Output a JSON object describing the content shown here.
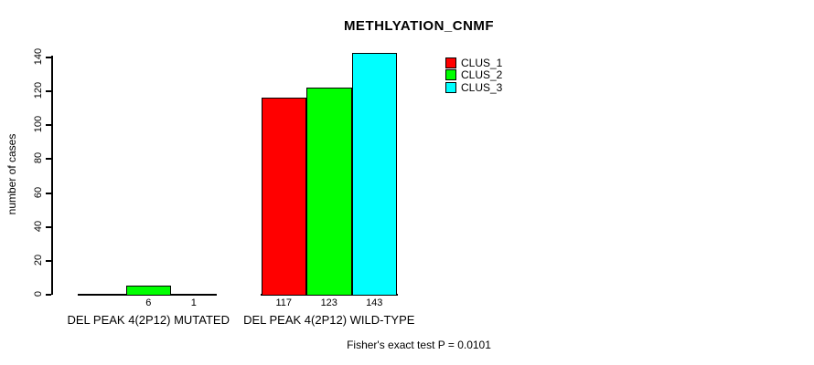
{
  "title": "METHLYATION_CNMF",
  "footer": "Fisher's exact test P = 0.0101",
  "chart_data": {
    "type": "bar",
    "title": "METHLYATION_CNMF",
    "xlabel": "",
    "ylabel": "number of cases",
    "ylim": [
      0,
      140
    ],
    "yticks": [
      0,
      20,
      40,
      60,
      80,
      100,
      120,
      140
    ],
    "grid": false,
    "categories": [
      "DEL PEAK 4(2P12) MUTATED",
      "DEL PEAK 4(2P12) WILD-TYPE"
    ],
    "series": [
      {
        "name": "CLUS_1",
        "color": "#FF0000",
        "values": [
          0,
          117
        ],
        "bar_labels": [
          "",
          "117"
        ]
      },
      {
        "name": "CLUS_2",
        "color": "#00FF00",
        "values": [
          6,
          123
        ],
        "bar_labels": [
          "6",
          "123"
        ]
      },
      {
        "name": "CLUS_3",
        "color": "#00FFFF",
        "values": [
          1,
          143
        ],
        "bar_labels": [
          "1",
          "143"
        ]
      }
    ],
    "legend": {
      "position": "top-right",
      "entries": [
        "CLUS_1",
        "CLUS_2",
        "CLUS_3"
      ]
    },
    "annotation": "Fisher's exact test P = 0.0101"
  }
}
